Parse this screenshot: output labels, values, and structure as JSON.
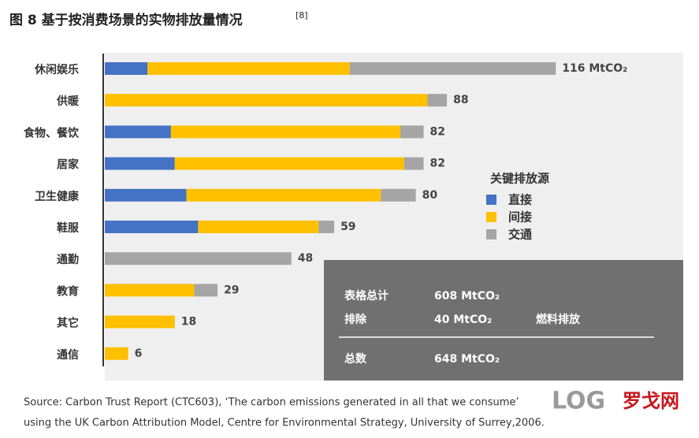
{
  "chart_data": {
    "type": "stacked-barh",
    "title": "图 8  基于按消费场景的实物排放量情况",
    "title_ref": "[8]",
    "categories": [
      "休闲娱乐",
      "供暖",
      "食物、餐饮",
      "居家",
      "卫生健康",
      "鞋服",
      "通勤",
      "教育",
      "其它",
      "通信"
    ],
    "series": [
      {
        "name": "直接",
        "color": "#4472c4",
        "values": [
          11,
          null,
          17,
          18,
          21,
          24,
          null,
          null,
          null,
          null
        ]
      },
      {
        "name": "间接",
        "color": "#ffc000",
        "values": [
          52,
          83,
          59,
          59,
          50,
          31,
          null,
          23,
          18,
          6
        ]
      },
      {
        "name": "交通",
        "color": "#a5a5a5",
        "values": [
          53,
          5,
          6,
          5,
          9,
          4,
          48,
          6,
          null,
          null
        ]
      }
    ],
    "totals": [
      116,
      88,
      82,
      82,
      80,
      59,
      48,
      29,
      18,
      6
    ],
    "value_labels": [
      "116 MtCO₂",
      "88",
      "82",
      "82",
      "80",
      "59",
      "48",
      "29",
      "18",
      "6"
    ],
    "xlim": [
      0,
      150
    ],
    "legend_title": "关键排放源",
    "legend": "right",
    "summary": {
      "rows": [
        [
          "表格总计",
          "608 MtCO₂"
        ],
        [
          "排除",
          "40 MtCO₂",
          "燃料排放"
        ],
        [
          "总数",
          "648 MtCO₂"
        ]
      ]
    },
    "source": [
      "Source: Carbon Trust Report (CTC603), ‘The carbon emissions generated in all that we consume’",
      "using the UK Carbon Attribution Model, Centre for Environmental Strategy, University of Surrey,2006."
    ],
    "logo": "LOG",
    "logo_text": "罗戈网"
  }
}
